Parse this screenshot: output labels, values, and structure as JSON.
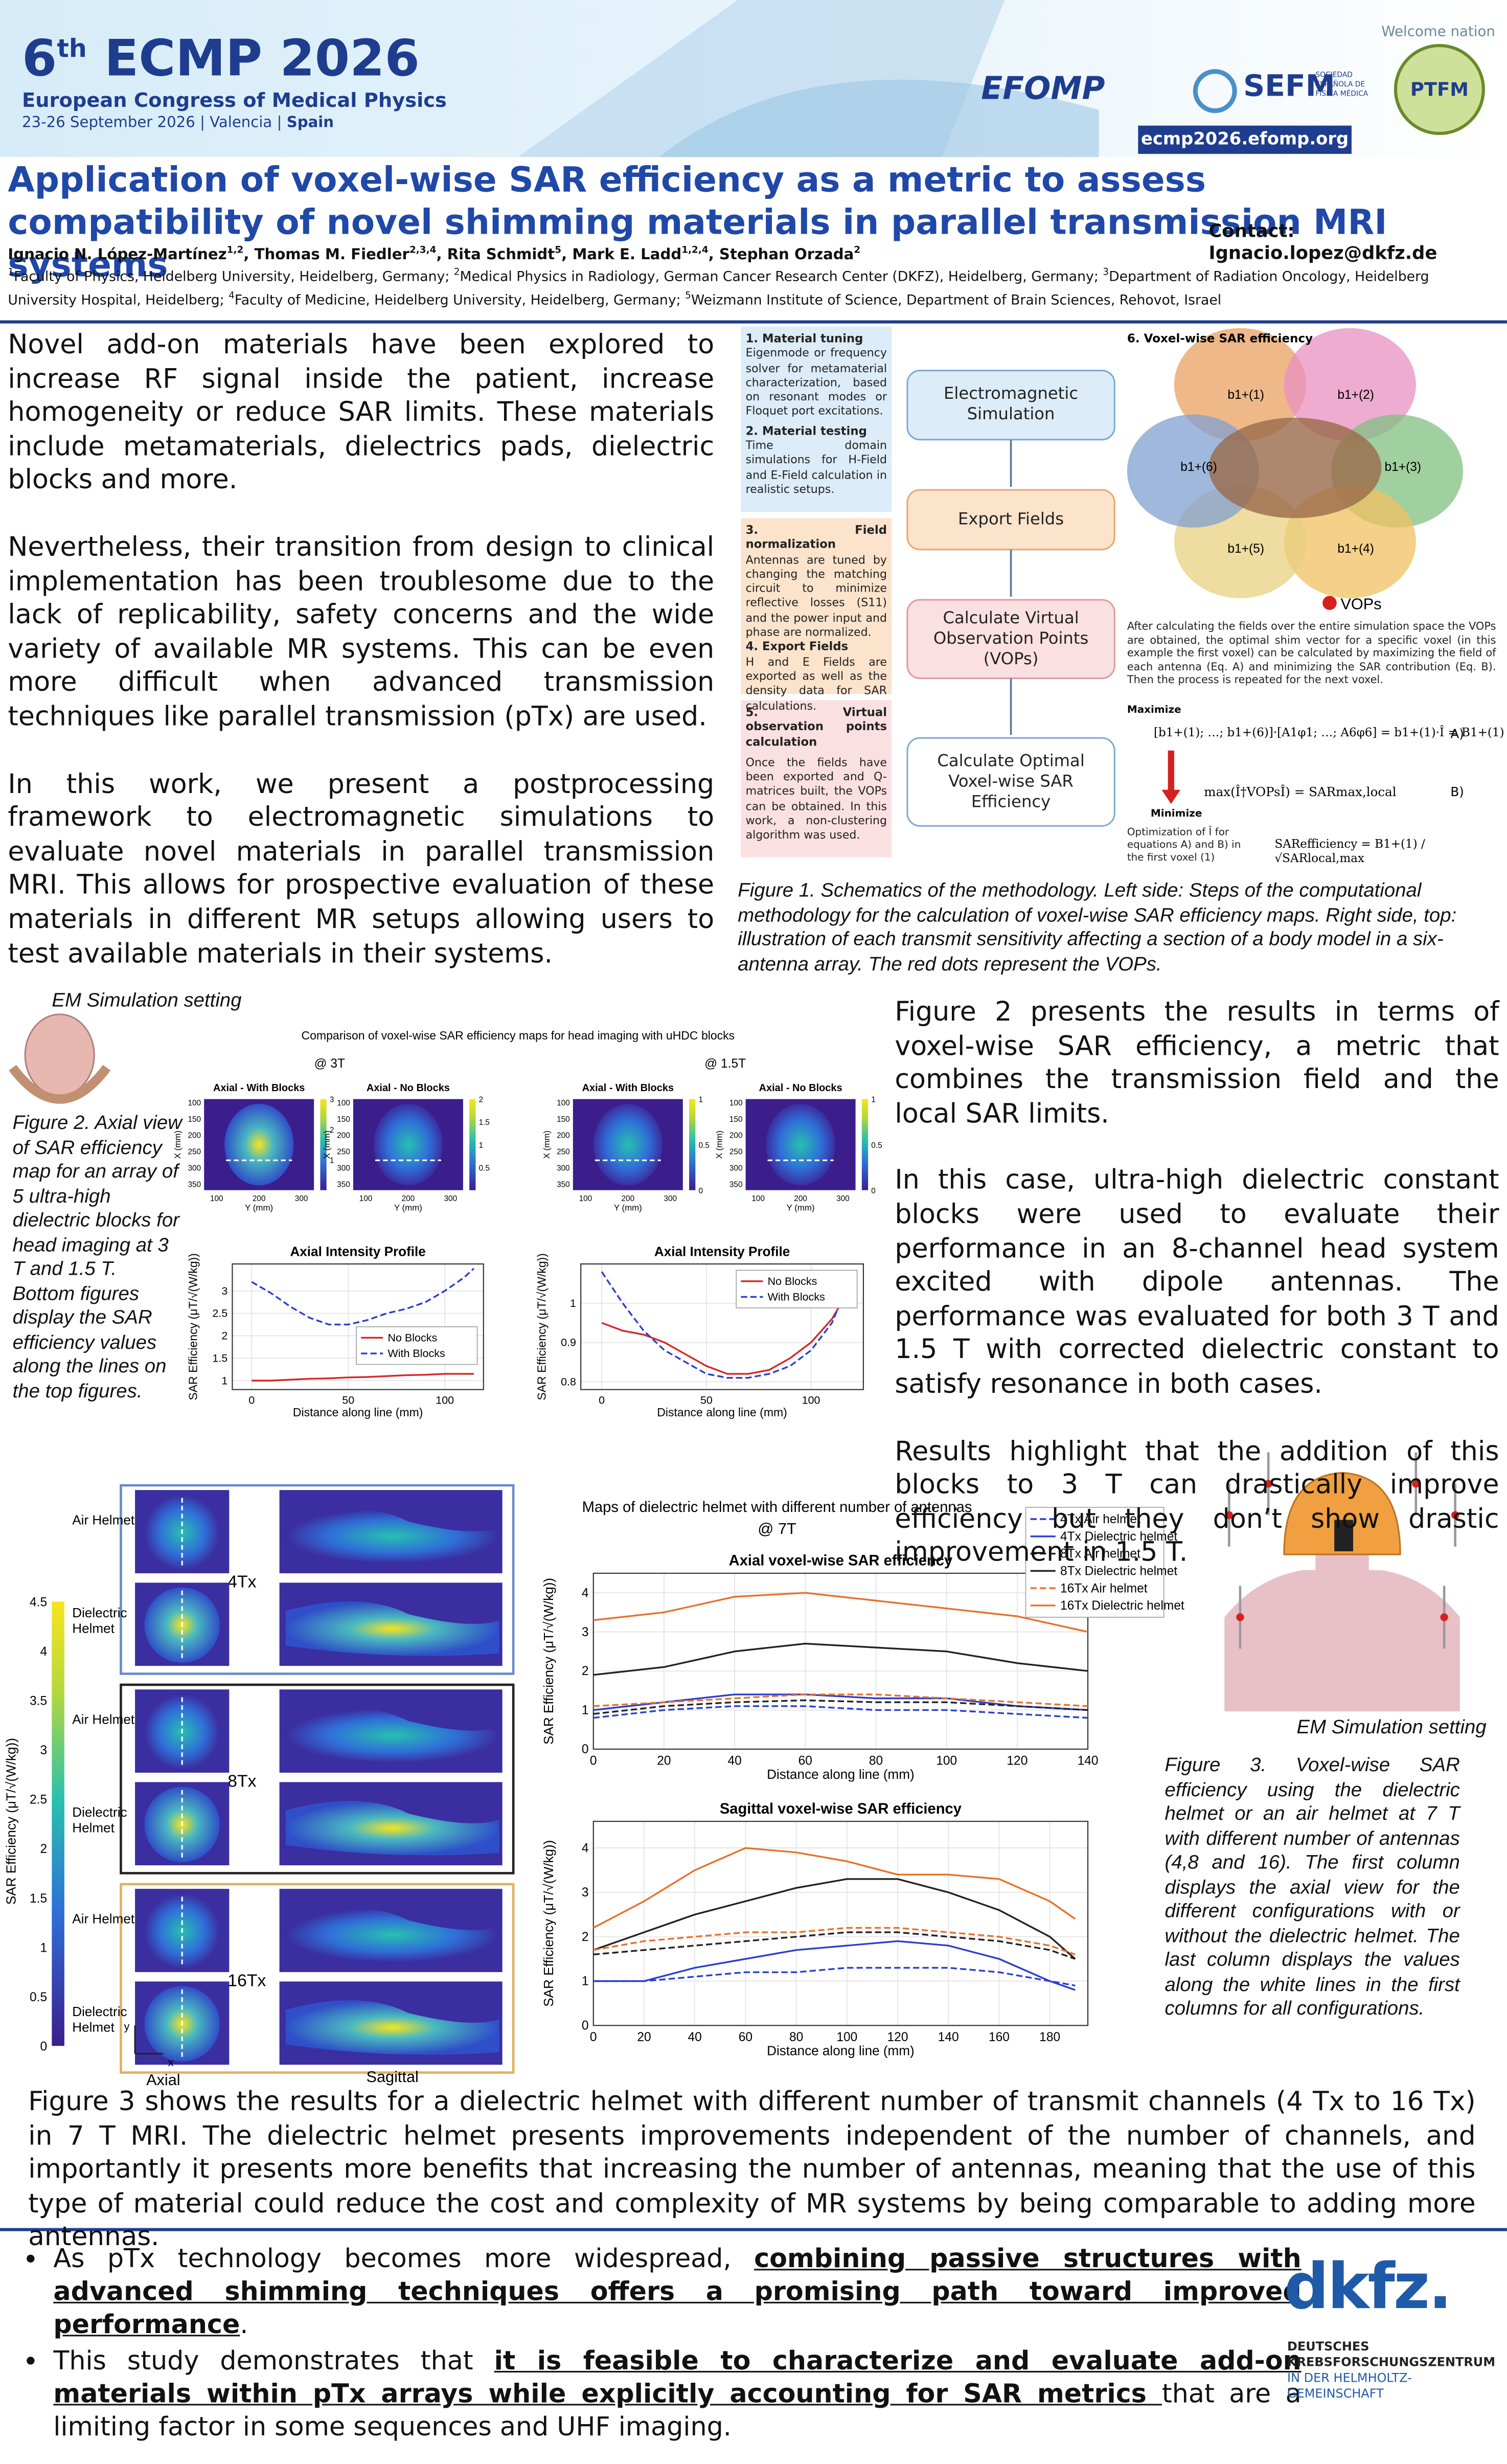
{
  "header": {
    "edition": "6",
    "edition_sup": "th",
    "congress": "ECMP 2026",
    "subtitle": "European Congress of Medical Physics",
    "dates": "23-26 September 2026 | Valencia | ",
    "country": "Spain",
    "welcome": "Welcome nation",
    "efomp": "EFOMP",
    "sefm": "SEFM",
    "sefm_sub": "SOCIEDAD ESPAÑOLA DE FÍSICA MÉDICA",
    "ptfm": "PTFM",
    "url": "ecmp2026.efomp.org"
  },
  "title": "Application of voxel-wise SAR efficiency as a metric to assess compatibility of novel shimming materials in parallel transmission MRI systems",
  "contact": "Contact: Ignacio.lopez@dkfz.de",
  "authors": [
    {
      "name": "Ignacio N. López-Martínez",
      "sup": "1,2"
    },
    {
      "name": ", Thomas M. Fiedler",
      "sup": "2,3,4"
    },
    {
      "name": ", Rita Schmidt",
      "sup": "5"
    },
    {
      "name": ", Mark E. Ladd",
      "sup": "1,2,4"
    },
    {
      "name": ", Stephan Orzada",
      "sup": "2"
    }
  ],
  "affiliations": [
    {
      "sup": "1",
      "text": "Faculty of Physics, Heidelberg University, Heidelberg, Germany; "
    },
    {
      "sup": "2",
      "text": "Medical Physics in Radiology, German Cancer Research Center (DKFZ), Heidelberg, Germany; "
    },
    {
      "sup": "3",
      "text": "Department of Radiation Oncology, Heidelberg University Hospital, Heidelberg; "
    },
    {
      "sup": "4",
      "text": "Faculty of Medicine, Heidelberg University, Heidelberg, Germany; "
    },
    {
      "sup": "5",
      "text": "Weizmann Institute of Science, Department of Brain Sciences, Rehovot, Israel"
    }
  ],
  "intro": [
    "Novel add-on materials have been explored to increase RF signal inside the patient, increase homogeneity or reduce SAR limits. These materials include metamaterials, dielectrics pads, dielectric blocks and more.",
    "Nevertheless, their transition from design to clinical implementation has been troublesome due to the lack of replicability, safety concerns and the wide variety of available MR systems. This can be even more difficult when advanced transmission techniques like parallel transmission (pTx) are used.",
    "In this work, we present a postprocessing framework to electromagnetic simulations to evaluate novel materials in parallel transmission MRI. This allows for prospective evaluation of these materials in different MR setups allowing users to test available materials in their systems."
  ],
  "figure1": {
    "steps": [
      {
        "title": "1. Material tuning",
        "text": "Eigenmode or frequency solver for metamaterial characterization, based on resonant modes or Floquet port excitations."
      },
      {
        "title": "2. Material testing",
        "text": "Time domain simulations for H-Field and E-Field calculation in realistic setups."
      },
      {
        "title": "3. Field normalization",
        "text": "Antennas are tuned by changing the matching circuit to minimize reflective losses (S11) and the power input and phase are normalized."
      },
      {
        "title": "4. Export Fields",
        "text": "H and E Fields are exported as well as the density data for SAR calculations."
      },
      {
        "title": "5. Virtual observation points calculation",
        "text": "Once the fields have been exported and Q-matrices built, the VOPs can be obtained. In this work, a non-clustering algorithm was used."
      }
    ],
    "flow": [
      "Electromagnetic Simulation",
      "Export Fields",
      "Calculate Virtual Observation Points (VOPs)",
      "Calculate Optimal Voxel-wise SAR Efficiency"
    ],
    "panel_title": "6. Voxel-wise SAR efficiency",
    "lobes": [
      "b1+(1)",
      "b1+(2)",
      "b1+(3)",
      "b1+(4)",
      "b1+(5)",
      "b1+(6)"
    ],
    "vops": "VOPs",
    "panel_text": "After calculating the fields over the entire simulation space the VOPs are obtained, the optimal shim vector for a specific voxel (in this example the first voxel) can be calculated by maximizing the field of each antenna (Eq. A) and minimizing the SAR contribution (Eq. B). Then the process is repeated for the next voxel.",
    "maximize": "Maximize",
    "eq_a": "[b1+(1); …; b1+(6)]·[A1φ1; …; A6φ6] = b1+(1)·Î = B1+(1)",
    "eq_a_label": "A)",
    "minimize": "Minimize",
    "eq_b": "max(Î†VOPsÎ) = SARmax,local",
    "eq_b_label": "B)",
    "optimization": "Optimization of Î for equations A) and B) in the first voxel (1)",
    "eq_eff": "SARefficiency = B1+(1) / √SARlocal,max",
    "caption": "Figure 1. Schematics of the methodology. Left side: Steps of the computational methodology for the calculation of voxel-wise SAR efficiency maps. Right side, top: illustration of each transmit sensitivity affecting a section of a body model in a six-antenna array. The red dots represent the VOPs."
  },
  "figure2": {
    "setting": "EM Simulation setting",
    "caption": "Figure 2. Axial view of SAR efficiency map for an array of 5 ultra-high dielectric blocks for head imaging at 3 T and 1.5 T. Bottom figures display the SAR efficiency values along the lines on the top figures.",
    "title": "Comparison of voxel-wise SAR efficiency maps for head imaging with uHDC blocks",
    "fields": [
      "@ 3T",
      "@ 1.5T"
    ],
    "maps": [
      {
        "title": "Axial - With Blocks",
        "colorbar_ticks": [
          1,
          2,
          3
        ]
      },
      {
        "title": "Axial - No Blocks",
        "colorbar_ticks": [
          0.5,
          1,
          1.5,
          2
        ]
      },
      {
        "title": "Axial - With Blocks",
        "colorbar_ticks": [
          0,
          0.5,
          1
        ]
      },
      {
        "title": "Axial - No Blocks",
        "colorbar_ticks": [
          0,
          0.5,
          1
        ]
      }
    ],
    "map_xticks": [
      100,
      200,
      300
    ],
    "map_yticks": [
      100,
      150,
      200,
      250,
      300,
      350
    ],
    "map_xlabel": "Y (mm)",
    "map_ylabel": "X (mm)"
  },
  "results_text": [
    "Figure 2 presents the results in terms of voxel-wise SAR efficiency, a metric that combines the transmission field and the local SAR limits.",
    "In this case, ultra-high dielectric constant blocks were used to evaluate their performance in an 8-channel head system excited with dipole antennas. The performance was evaluated for both 3 T and 1.5 T with corrected dielectric constant to satisfy resonance in both cases.",
    "Results highlight that the addition of this blocks to 3 T can drastically improve efficiency but they don’t show drastic improvement in 1.5 T."
  ],
  "figure3": {
    "groups": [
      {
        "label": "4Tx",
        "rows": [
          "Air Helmet",
          "Dielectric Helmet"
        ]
      },
      {
        "label": "8Tx",
        "rows": [
          "Air Helmet",
          "Dielectric Helmet"
        ]
      },
      {
        "label": "16Tx",
        "rows": [
          "Air Helmet",
          "Dielectric Helmet"
        ]
      }
    ],
    "colorbar_ticks": [
      0,
      0.5,
      1,
      1.5,
      2,
      2.5,
      3,
      3.5,
      4,
      4.5
    ],
    "colorbar_label": "SAR Efficiency (μT/√(W/kg))",
    "views": [
      "Axial",
      "Sagittal"
    ],
    "y_arrow": "y",
    "x_arrow": "x",
    "title": "Maps of dielectric helmet with different number of antennas",
    "field": "@ 7T",
    "setting": "EM Simulation setting",
    "caption": "Figure 3. Voxel-wise SAR efficiency using the dielectric helmet or an air helmet at 7 T with different number of antennas (4,8 and 16). The first column displays the axial view for the different configurations with or without the dielectric helmet. The last column displays the values along the white lines in the first columns for all configurations."
  },
  "conclusion_text": "Figure 3 shows the results for a dielectric helmet with different number of transmit channels (4 Tx to 16 Tx) in 7 T MRI. The dielectric helmet presents improvements independent of the number of channels, and importantly it presents more benefits that increasing the number of antennas, meaning that the use of this type of material could reduce the cost and complexity of MR systems by being comparable to adding more antennas.",
  "bullets": [
    [
      {
        "text": "As pTx technology becomes more widespread, ",
        "strong": false
      },
      {
        "text": "combining passive structures with advanced shimming techniques offers a promising path toward improved performance",
        "strong": true
      },
      {
        "text": ".",
        "strong": false
      }
    ],
    [
      {
        "text": "This study demonstrates that ",
        "strong": false
      },
      {
        "text": "it is feasible to characterize and evaluate add-on materials within pTx arrays while explicitly accounting for SAR metrics ",
        "strong": true
      },
      {
        "text": "that are a limiting factor in some sequences and UHF imaging.",
        "strong": false
      }
    ]
  ],
  "logo": {
    "name": "dkfz.",
    "line1": "DEUTSCHES",
    "line2": "KREBSFORSCHUNGSZENTRUM",
    "line3": "IN DER HELMHOLTZ-GEMEINSCHAFT"
  },
  "chart_data": [
    {
      "type": "line",
      "title": "Axial Intensity Profile",
      "xlabel": "Distance along line (mm)",
      "ylabel": "SAR Efficiency (μT/√(W/kg))",
      "x": [
        0,
        10,
        20,
        30,
        40,
        50,
        60,
        70,
        80,
        90,
        100,
        110,
        115
      ],
      "xlim": [
        -10,
        120
      ],
      "xticks": [
        0,
        50,
        100
      ],
      "ylim": [
        0.8,
        3.6
      ],
      "yticks": [
        1,
        1.5,
        2,
        2.5,
        3
      ],
      "legend": "center right",
      "grid": true,
      "series": [
        {
          "name": "No Blocks",
          "color": "#d62728",
          "dashed": false,
          "values": [
            1.0,
            1.0,
            1.02,
            1.04,
            1.05,
            1.07,
            1.08,
            1.1,
            1.12,
            1.13,
            1.15,
            1.15,
            1.15
          ]
        },
        {
          "name": "With Blocks",
          "color": "#2a3fd0",
          "dashed": true,
          "values": [
            3.2,
            2.95,
            2.65,
            2.4,
            2.25,
            2.25,
            2.35,
            2.5,
            2.6,
            2.75,
            3.0,
            3.3,
            3.5
          ]
        }
      ]
    },
    {
      "type": "line",
      "title": "Axial Intensity Profile",
      "xlabel": "Distance along line (mm)",
      "ylabel": "SAR Efficiency (μT/√(W/kg))",
      "x": [
        0,
        10,
        20,
        30,
        40,
        50,
        60,
        70,
        80,
        90,
        100,
        110,
        120
      ],
      "xlim": [
        -10,
        125
      ],
      "xticks": [
        0,
        50,
        100
      ],
      "ylim": [
        0.78,
        1.1
      ],
      "yticks": [
        0.8,
        0.9,
        1
      ],
      "legend": "upper right",
      "grid": true,
      "series": [
        {
          "name": "No Blocks",
          "color": "#d62728",
          "dashed": false,
          "values": [
            0.95,
            0.93,
            0.92,
            0.9,
            0.87,
            0.84,
            0.82,
            0.82,
            0.83,
            0.86,
            0.9,
            0.96,
            1.05
          ]
        },
        {
          "name": "With Blocks",
          "color": "#2a3fd0",
          "dashed": true,
          "values": [
            1.08,
            1.0,
            0.93,
            0.88,
            0.85,
            0.82,
            0.81,
            0.81,
            0.82,
            0.84,
            0.88,
            0.95,
            1.08
          ]
        }
      ]
    },
    {
      "type": "line",
      "title": "Axial voxel-wise SAR efficiency",
      "xlabel": "Distance along line (mm)",
      "ylabel": "SAR Efficiency (μT/√(W/kg))",
      "x": [
        0,
        20,
        40,
        60,
        80,
        100,
        120,
        140
      ],
      "xlim": [
        0,
        140
      ],
      "xticks": [
        0,
        20,
        40,
        60,
        80,
        100,
        120,
        140
      ],
      "ylim": [
        0,
        4.5
      ],
      "yticks": [
        0,
        1,
        2,
        3,
        4
      ],
      "legend": "outside upper right",
      "grid": true,
      "series": [
        {
          "name": "4Tx Air helmet",
          "color": "#2a3fd0",
          "dashed": true,
          "values": [
            0.8,
            1.0,
            1.1,
            1.1,
            1.0,
            1.0,
            0.9,
            0.8
          ]
        },
        {
          "name": "4Tx Dielectric helmet",
          "color": "#2a3fd0",
          "dashed": false,
          "values": [
            1.0,
            1.2,
            1.4,
            1.4,
            1.3,
            1.3,
            1.1,
            1.0
          ]
        },
        {
          "name": "8Tx Air helmet",
          "color": "#222222",
          "dashed": true,
          "values": [
            0.9,
            1.1,
            1.2,
            1.25,
            1.2,
            1.2,
            1.1,
            1.0
          ]
        },
        {
          "name": "8Tx Dielectric helmet",
          "color": "#222222",
          "dashed": false,
          "values": [
            1.9,
            2.1,
            2.5,
            2.7,
            2.6,
            2.5,
            2.2,
            2.0
          ]
        },
        {
          "name": "16Tx Air helmet",
          "color": "#e8702a",
          "dashed": true,
          "values": [
            1.1,
            1.2,
            1.3,
            1.4,
            1.4,
            1.3,
            1.2,
            1.1
          ]
        },
        {
          "name": "16Tx Dielectric helmet",
          "color": "#e8702a",
          "dashed": false,
          "values": [
            3.3,
            3.5,
            3.9,
            4.0,
            3.8,
            3.6,
            3.4,
            3.0
          ]
        }
      ]
    },
    {
      "type": "line",
      "title": "Sagittal voxel-wise SAR efficiency",
      "xlabel": "Distance along line (mm)",
      "ylabel": "SAR Efficiency (μT/√(W/kg))",
      "x": [
        0,
        20,
        40,
        60,
        80,
        100,
        120,
        140,
        160,
        180,
        190
      ],
      "xlim": [
        0,
        195
      ],
      "xticks": [
        0,
        20,
        40,
        60,
        80,
        100,
        120,
        140,
        160,
        180
      ],
      "ylim": [
        0,
        4.6
      ],
      "yticks": [
        0,
        1,
        2,
        3,
        4
      ],
      "grid": true,
      "series": [
        {
          "color": "#2a3fd0",
          "dashed": true,
          "values": [
            1.0,
            1.0,
            1.1,
            1.2,
            1.2,
            1.3,
            1.3,
            1.3,
            1.2,
            1.0,
            0.9
          ]
        },
        {
          "color": "#2a3fd0",
          "dashed": false,
          "values": [
            1.0,
            1.0,
            1.3,
            1.5,
            1.7,
            1.8,
            1.9,
            1.8,
            1.5,
            1.0,
            0.8
          ]
        },
        {
          "color": "#222222",
          "dashed": true,
          "values": [
            1.6,
            1.7,
            1.8,
            1.9,
            2.0,
            2.1,
            2.1,
            2.0,
            1.9,
            1.7,
            1.5
          ]
        },
        {
          "color": "#222222",
          "dashed": false,
          "values": [
            1.7,
            2.1,
            2.5,
            2.8,
            3.1,
            3.3,
            3.3,
            3.0,
            2.6,
            2.0,
            1.5
          ]
        },
        {
          "color": "#e8702a",
          "dashed": true,
          "values": [
            1.7,
            1.9,
            2.0,
            2.1,
            2.1,
            2.2,
            2.2,
            2.1,
            2.0,
            1.8,
            1.6
          ]
        },
        {
          "color": "#e8702a",
          "dashed": false,
          "values": [
            2.2,
            2.8,
            3.5,
            4.0,
            3.9,
            3.7,
            3.4,
            3.4,
            3.3,
            2.8,
            2.4
          ]
        }
      ]
    }
  ]
}
